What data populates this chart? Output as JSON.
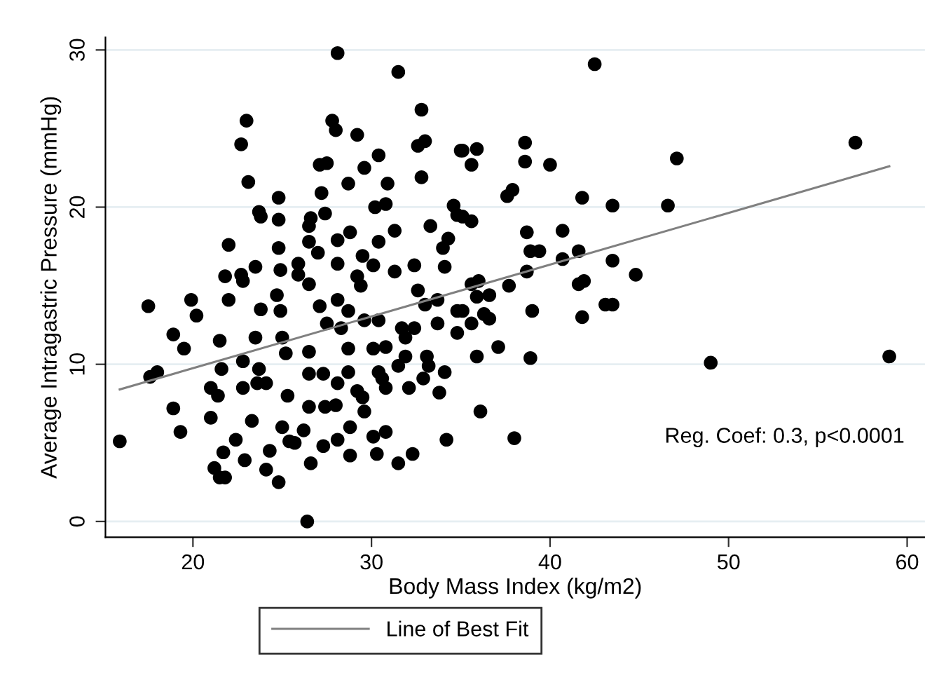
{
  "chart_data": {
    "type": "scatter",
    "xlabel": "Body Mass Index (kg/m2)",
    "ylabel": "Average Intragastric Pressure (mmHg)",
    "xlim": [
      15.1,
      61
    ],
    "ylim": [
      -1,
      30.8
    ],
    "xticks": [
      20,
      30,
      40,
      50,
      60
    ],
    "yticks": [
      0,
      10,
      20,
      30
    ],
    "grid": "y",
    "legend": "bottom",
    "marker": "circle",
    "annotations": [
      "Reg. Coef: 0.3, p<0.0001"
    ],
    "series": [
      {
        "color": "#000000",
        "x": [
          15.9,
          17.5,
          17.6,
          18.0,
          18.9,
          18.9,
          19.5,
          19.3,
          19.9,
          20.2,
          21.0,
          21.0,
          21.4,
          21.5,
          21.6,
          21.2,
          21.5,
          21.8,
          21.7,
          22.0,
          21.8,
          22.0,
          22.7,
          23.0,
          23.1,
          22.7,
          22.8,
          22.4,
          22.9,
          22.8,
          22.8,
          23.3,
          23.5,
          23.7,
          23.8,
          23.8,
          23.5,
          23.7,
          23.6,
          24.1,
          24.1,
          24.3,
          24.8,
          24.8,
          24.8,
          24.8,
          24.9,
          24.7,
          24.9,
          25.0,
          25.2,
          25.0,
          25.4,
          25.3,
          25.7,
          25.9,
          25.9,
          26.6,
          26.4,
          26.5,
          26.6,
          26.5,
          26.5,
          26.5,
          26.5,
          26.5,
          26.2,
          27.0,
          27.1,
          27.1,
          27.5,
          27.2,
          27.4,
          27.3,
          27.4,
          27.3,
          27.5,
          27.8,
          28.0,
          28.1,
          28.1,
          28.1,
          28.1,
          28.3,
          28.1,
          28.0,
          28.1,
          28.7,
          28.8,
          28.7,
          28.7,
          28.8,
          28.8,
          28.7,
          29.2,
          29.2,
          29.4,
          29.5,
          29.6,
          29.6,
          29.2,
          29.5,
          29.6,
          30.1,
          30.4,
          30.2,
          30.4,
          30.1,
          30.4,
          30.4,
          30.6,
          30.1,
          30.3,
          30.8,
          30.9,
          30.8,
          30.8,
          30.8,
          31.3,
          31.5,
          31.3,
          31.5,
          31.5,
          31.7,
          31.9,
          31.9,
          32.4,
          32.3,
          32.1,
          32.4,
          32.6,
          32.8,
          33.0,
          32.8,
          32.6,
          33.0,
          33.1,
          32.9,
          33.3,
          33.2,
          33.7,
          33.7,
          34.0,
          34.1,
          34.1,
          33.8,
          34.2,
          34.3,
          34.6,
          35.0,
          34.8,
          34.8,
          34.8,
          35.1,
          35.6,
          35.9,
          35.6,
          35.1,
          36.0,
          35.9,
          35.6,
          36.6,
          36.3,
          36.6,
          35.6,
          35.1,
          35.9,
          37.1,
          37.7,
          36.1,
          38.0,
          37.6,
          37.9,
          38.6,
          38.6,
          40.0,
          38.7,
          38.9,
          39.4,
          38.7,
          39.0,
          38.9,
          40.7,
          40.7,
          41.6,
          41.6,
          41.9,
          41.8,
          41.8,
          43.1,
          43.5,
          43.5,
          43.5,
          44.8,
          42.5,
          46.6,
          47.1,
          49.0,
          57.1,
          59.0
        ],
        "values": [
          5.1,
          13.7,
          9.2,
          9.5,
          11.9,
          7.2,
          11.0,
          5.7,
          14.1,
          13.1,
          6.6,
          8.5,
          8.0,
          11.5,
          9.7,
          3.4,
          2.8,
          2.8,
          4.4,
          17.6,
          15.6,
          14.1,
          24.0,
          25.5,
          21.6,
          15.7,
          15.3,
          5.2,
          3.9,
          8.5,
          10.2,
          6.4,
          16.2,
          19.7,
          19.4,
          13.5,
          11.7,
          9.7,
          8.8,
          8.8,
          3.3,
          4.5,
          2.5,
          20.6,
          19.2,
          17.4,
          16.0,
          14.4,
          13.4,
          11.7,
          10.7,
          6.0,
          5.1,
          8.0,
          5.0,
          16.4,
          15.7,
          3.7,
          0,
          18.8,
          19.3,
          17.8,
          15.1,
          10.8,
          9.4,
          7.3,
          5.8,
          17.1,
          13.7,
          22.7,
          22.8,
          20.9,
          19.6,
          9.4,
          7.3,
          4.8,
          12.6,
          25.5,
          24.9,
          29.8,
          17.9,
          16.4,
          14.1,
          12.3,
          8.8,
          7.4,
          5.2,
          21.5,
          18.4,
          13.4,
          11.0,
          6.0,
          4.2,
          9.5,
          24.6,
          15.6,
          15.0,
          16.9,
          22.5,
          12.8,
          8.3,
          7.9,
          7.0,
          16.3,
          23.3,
          20.0,
          17.8,
          11.0,
          12.8,
          9.5,
          9.1,
          5.4,
          4.3,
          20.2,
          21.5,
          11.1,
          5.7,
          8.5,
          18.5,
          28.6,
          15.9,
          9.9,
          3.7,
          12.3,
          11.7,
          10.5,
          16.3,
          4.3,
          8.5,
          12.3,
          23.9,
          26.2,
          24.2,
          21.9,
          14.7,
          13.8,
          10.5,
          9.1,
          18.8,
          9.9,
          12.6,
          14.1,
          17.4,
          16.2,
          9.5,
          8.2,
          5.2,
          18.0,
          20.1,
          23.6,
          19.5,
          13.4,
          12.0,
          23.6,
          22.7,
          23.7,
          19.1,
          19.4,
          15.3,
          14.3,
          15.1,
          14.4,
          13.2,
          12.9,
          12.6,
          13.4,
          10.5,
          11.1,
          15.0,
          7.0,
          5.3,
          20.7,
          21.1,
          24.1,
          22.9,
          22.7,
          18.4,
          17.2,
          17.2,
          15.9,
          13.4,
          10.4,
          18.5,
          16.7,
          17.2,
          15.1,
          15.3,
          20.6,
          13.0,
          13.8,
          13.8,
          20.1,
          16.6,
          15.7,
          29.1,
          20.1,
          23.1,
          10.1,
          24.1,
          10.5
        ]
      },
      {
        "type": "line",
        "name": "Line of Best Fit",
        "color": "#808080",
        "x": [
          15.9,
          59.0
        ],
        "values": [
          8.4,
          22.6
        ],
        "marker": "none"
      }
    ]
  }
}
